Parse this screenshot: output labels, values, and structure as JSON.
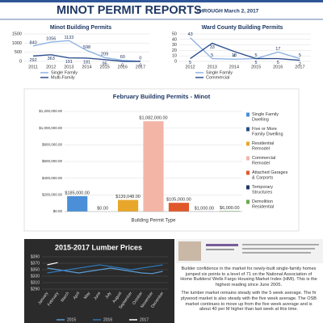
{
  "header": {
    "title": "MINOT PERMIT REPORTS",
    "subtitle": "THROUGH March 2, 2017"
  },
  "chart_data": [
    {
      "type": "line",
      "title": "Minot Building Permits",
      "categories": [
        "2011",
        "2012",
        "2013",
        "2014",
        "2015",
        "2016",
        "2017"
      ],
      "series": [
        {
          "name": "Single Family",
          "color": "#8fb4e3",
          "values": [
            840,
            1056,
            1133,
            598,
            209,
            60,
            0
          ]
        },
        {
          "name": "Multi-Family",
          "color": "#2f4f8f",
          "values": [
            292,
            363,
            191,
            181,
            95,
            0,
            0
          ]
        }
      ],
      "ylim": [
        0,
        1500
      ],
      "yticks": [
        0,
        500,
        1000,
        1500
      ],
      "grid": true,
      "legend": "bottom"
    },
    {
      "type": "line",
      "title": "Ward County Building Permits",
      "categories": [
        "2012",
        "2013",
        "2014",
        "2015",
        "2016",
        "2017"
      ],
      "series": [
        {
          "name": "Single Family",
          "color": "#8fb4e3",
          "values": [
            43,
            5,
            4,
            5,
            17,
            5
          ]
        },
        {
          "name": "Commercial",
          "color": "#2f4f8f",
          "values": [
            5,
            33,
            18,
            5,
            5,
            2
          ]
        }
      ],
      "ylim": [
        0,
        50
      ],
      "yticks": [
        0,
        10,
        20,
        30,
        40,
        50
      ],
      "grid": true,
      "legend": "bottom"
    },
    {
      "type": "bar",
      "title": "February Building Permits - Minot",
      "x_label": "Building Permit Type",
      "categories": [
        "Single Family Dwelling",
        "Five or More Family Dwelling",
        "Residential Remodel",
        "Commercial Remodel",
        "Attached Garages & Carports",
        "Temporary Structures",
        "Demolition Residential"
      ],
      "colors": [
        "#4a8fd8",
        "#2a4f86",
        "#e8a72a",
        "#f3b5a6",
        "#e0582a",
        "#1f3864",
        "#6aa84f"
      ],
      "values": [
        185000,
        0,
        139048,
        1082000,
        105000,
        1000,
        6000
      ],
      "value_labels": [
        "$185,000.00",
        "$0.00",
        "$139,048.00",
        "$1,082,000.00",
        "$105,000.00",
        "$1,000.00",
        "$6,000.00"
      ],
      "ylim": [
        0,
        1200000
      ],
      "yticks": [
        {
          "value": 0,
          "label": "$0.00"
        },
        {
          "value": 200000,
          "label": "$200,000.00"
        },
        {
          "value": 400000,
          "label": "$400,000.00"
        },
        {
          "value": 600000,
          "label": "$600,000.00"
        },
        {
          "value": 800000,
          "label": "$800,000.00"
        },
        {
          "value": 1000000,
          "label": "$1,000,000.00"
        },
        {
          "value": 1200000,
          "label": "$1,200,000.00"
        }
      ],
      "grid": true,
      "legend": "right"
    },
    {
      "type": "line",
      "title": "2015-2017 Lumber Prices",
      "categories": [
        "January",
        "February",
        "March",
        "April",
        "May",
        "June",
        "July",
        "August",
        "September",
        "October",
        "November",
        "December"
      ],
      "series": [
        {
          "name": "2015",
          "color": "#5b9bd5",
          "values": [
            355,
            350,
            345,
            340,
            345,
            350,
            355,
            350,
            345,
            340,
            338,
            345
          ]
        },
        {
          "name": "2016",
          "color": "#2e75b6",
          "values": [
            340,
            345,
            350,
            355,
            360,
            365,
            360,
            355,
            350,
            355,
            360,
            365
          ]
        },
        {
          "name": "2017",
          "color": "#ffffff",
          "values": [
            365,
            372,
            null,
            null,
            null,
            null,
            null,
            null,
            null,
            null,
            null,
            null
          ]
        }
      ],
      "ylim": [
        290,
        390
      ],
      "yticks": [
        {
          "value": 290,
          "label": "$290"
        },
        {
          "value": 310,
          "label": "$310"
        },
        {
          "value": 330,
          "label": "$330"
        },
        {
          "value": 350,
          "label": "$350"
        },
        {
          "value": 370,
          "label": "$370"
        },
        {
          "value": 390,
          "label": "$390"
        }
      ],
      "grid": true,
      "legend": "bottom",
      "background": "#2b2b2b"
    }
  ],
  "article": {
    "paragraphs": [
      "Builder confidence in the market for newly-built single-family homes jumped six points to a level of 71 on the National Association of Home Builders/ Wells Fargo Housing Market Index (HMI). This is the highest reading since June 2005.",
      "The lumber market remains steady with the 5 week average. The fir plywood market is also steady with the five week average. The OSB market continues to move up from the five week average and is about 40 per M higher than last week at this time."
    ]
  }
}
